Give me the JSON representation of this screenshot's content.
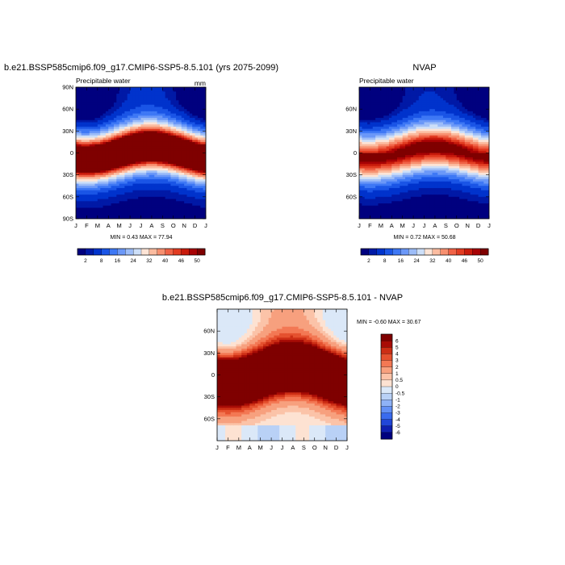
{
  "chart_data": [
    {
      "type": "heatmap",
      "title": "b.e21.BSSP585cmip6.f09_g17.CMIP6-SSP5-8.5.101 (yrs 2075-2099)",
      "subtitle_left": "Precipitable water",
      "subtitle_right": "mm",
      "x_tick_labels": [
        "J",
        "F",
        "M",
        "A",
        "M",
        "J",
        "J",
        "A",
        "S",
        "O",
        "N",
        "D",
        "J"
      ],
      "y_tick_labels": [
        "90N",
        "60N",
        "30N",
        "0",
        "30S",
        "60S",
        "90S"
      ],
      "ylim": [
        -90,
        90
      ],
      "stats": "MIN =   0.43 MAX =  77.94",
      "colorbar_labels": [
        "2",
        "8",
        "16",
        "24",
        "32",
        "40",
        "46",
        "50"
      ],
      "field": "seasonal cycle: equatorial maximum (>50) shifting north in JJA, polar minima"
    },
    {
      "type": "heatmap",
      "title": "NVAP",
      "subtitle_left": "Precipitable water",
      "subtitle_right": "",
      "x_tick_labels": [
        "J",
        "F",
        "M",
        "A",
        "M",
        "J",
        "J",
        "A",
        "S",
        "O",
        "N",
        "D",
        "J"
      ],
      "y_tick_labels": [
        "60N",
        "30N",
        "0",
        "30S",
        "60S"
      ],
      "ylim": [
        -90,
        90
      ],
      "stats": "MIN =   0.72 MAX =  50.68",
      "colorbar_labels": [
        "2",
        "8",
        "16",
        "24",
        "32",
        "40",
        "46",
        "50"
      ]
    },
    {
      "type": "heatmap",
      "title": "b.e21.BSSP585cmip6.f09_g17.CMIP6-SSP5-8.5.101 - NVAP",
      "x_tick_labels": [
        "J",
        "F",
        "M",
        "A",
        "M",
        "J",
        "J",
        "A",
        "S",
        "O",
        "N",
        "D",
        "J"
      ],
      "y_tick_labels": [
        "60N",
        "30N",
        "0",
        "30S",
        "60S"
      ],
      "ylim": [
        -90,
        90
      ],
      "stats": "MIN =  -0.60 MAX =  30.67",
      "colorbar_labels": [
        "6",
        "5",
        "4",
        "3",
        "2",
        "1",
        "0.5",
        "0",
        "-0.5",
        "-1",
        "-2",
        "-3",
        "-4",
        "-5",
        "-6"
      ]
    }
  ],
  "colors": {
    "abs_scale": [
      "#00007f",
      "#0019a6",
      "#0033cc",
      "#1a55e6",
      "#3e78f5",
      "#6b98f8",
      "#9dbdf8",
      "#cddff8",
      "#fde4d6",
      "#fbbca0",
      "#f79070",
      "#f06246",
      "#e23c22",
      "#c91b0c",
      "#a80305",
      "#7f0000"
    ],
    "diff_scale": [
      "#00007f",
      "#0f1fb0",
      "#2146d8",
      "#3a6bef",
      "#6390f5",
      "#8fb2f6",
      "#b9d1f6",
      "#dbe8f8",
      "#fde2d2",
      "#fbc3a8",
      "#f7a07e",
      "#f37854",
      "#e5512f",
      "#cc2e15",
      "#a80c06",
      "#7f0000"
    ]
  }
}
